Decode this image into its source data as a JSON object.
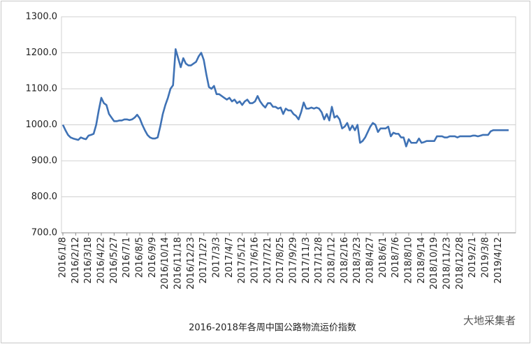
{
  "chart_data": {
    "type": "line",
    "title": "2016-2018年各周中国公路物流运价指数",
    "watermark": "大地采集者",
    "color": "#3f72b5",
    "grid": true,
    "ylim": [
      700,
      1300
    ],
    "yticks": [
      {
        "value": 700,
        "label": "700.0"
      },
      {
        "value": 800,
        "label": "800.0"
      },
      {
        "value": 900,
        "label": "900.0"
      },
      {
        "value": 1000,
        "label": "1000.0"
      },
      {
        "value": 1100,
        "label": "1100.0"
      },
      {
        "value": 1200,
        "label": "1200.0"
      },
      {
        "value": 1300,
        "label": "1300.0"
      }
    ],
    "categories": [
      "2016/1/8",
      null,
      null,
      null,
      null,
      "2016/2/12",
      null,
      null,
      null,
      null,
      "2016/3/18",
      null,
      null,
      null,
      null,
      "2016/4/22",
      null,
      null,
      null,
      null,
      "2016/5/27",
      null,
      null,
      null,
      null,
      "2016/7/1",
      null,
      null,
      null,
      null,
      "2016/8/5",
      null,
      null,
      null,
      null,
      "2016/9/9",
      null,
      null,
      null,
      null,
      "2016/10/14",
      null,
      null,
      null,
      null,
      "2016/11/18",
      null,
      null,
      null,
      null,
      "2016/12/23",
      null,
      null,
      null,
      null,
      "2017/1/27",
      null,
      null,
      null,
      null,
      "2017/3/3",
      null,
      null,
      null,
      null,
      "2017/4/7",
      null,
      null,
      null,
      null,
      "2017/5/12",
      null,
      null,
      null,
      null,
      "2017/6/16",
      null,
      null,
      null,
      null,
      "2017/7/21",
      null,
      null,
      null,
      null,
      "2017/8/25",
      null,
      null,
      null,
      null,
      "2017/9/29",
      null,
      null,
      null,
      null,
      "2017/11/3",
      null,
      null,
      null,
      null,
      "2017/12/8",
      null,
      null,
      null,
      null,
      "2018/1/12",
      null,
      null,
      null,
      null,
      "2018/2/16",
      null,
      null,
      null,
      null,
      "2018/3/23",
      null,
      null,
      null,
      null,
      "2018/4/27",
      null,
      null,
      null,
      null,
      "2018/6/1",
      null,
      null,
      null,
      null,
      "2018/7/6",
      null,
      null,
      null,
      null,
      "2018/8/10",
      null,
      null,
      null,
      null,
      "2018/9/14",
      null,
      null,
      null,
      null,
      "2018/10/19",
      null,
      null,
      null,
      null,
      "2018/11/23",
      null,
      null,
      null,
      null,
      "2018/12/28",
      null,
      null,
      null,
      null,
      "2019/2/1",
      null,
      null,
      null,
      null,
      "2019/3/8",
      null,
      null,
      null,
      null,
      "2019/4/12",
      null,
      null,
      null,
      null
    ],
    "values": [
      1000,
      985,
      972,
      965,
      962,
      960,
      958,
      965,
      962,
      960,
      970,
      972,
      975,
      1000,
      1040,
      1075,
      1060,
      1055,
      1030,
      1020,
      1010,
      1010,
      1012,
      1012,
      1015,
      1015,
      1013,
      1015,
      1020,
      1028,
      1018,
      1000,
      985,
      972,
      965,
      962,
      962,
      965,
      995,
      1030,
      1055,
      1075,
      1100,
      1110,
      1210,
      1185,
      1160,
      1185,
      1170,
      1165,
      1165,
      1170,
      1175,
      1190,
      1200,
      1180,
      1140,
      1105,
      1100,
      1108,
      1085,
      1085,
      1080,
      1075,
      1070,
      1075,
      1065,
      1070,
      1060,
      1065,
      1055,
      1065,
      1070,
      1060,
      1060,
      1065,
      1080,
      1065,
      1055,
      1048,
      1060,
      1060,
      1050,
      1050,
      1045,
      1048,
      1030,
      1045,
      1040,
      1040,
      1030,
      1025,
      1015,
      1035,
      1062,
      1045,
      1045,
      1048,
      1045,
      1048,
      1045,
      1035,
      1015,
      1030,
      1012,
      1050,
      1020,
      1025,
      1015,
      990,
      995,
      1005,
      985,
      998,
      985,
      1000,
      950,
      955,
      965,
      980,
      995,
      1005,
      1000,
      980,
      990,
      990,
      990,
      995,
      968,
      978,
      975,
      975,
      965,
      965,
      940,
      960,
      950,
      950,
      950,
      962,
      950,
      952,
      955,
      955,
      955,
      955,
      968,
      968,
      968,
      965,
      965,
      968,
      968,
      968,
      965,
      968,
      968,
      968,
      968,
      968,
      970,
      970,
      968,
      970,
      972,
      972,
      972,
      982,
      985,
      985,
      985,
      985,
      985,
      985,
      985
    ]
  }
}
